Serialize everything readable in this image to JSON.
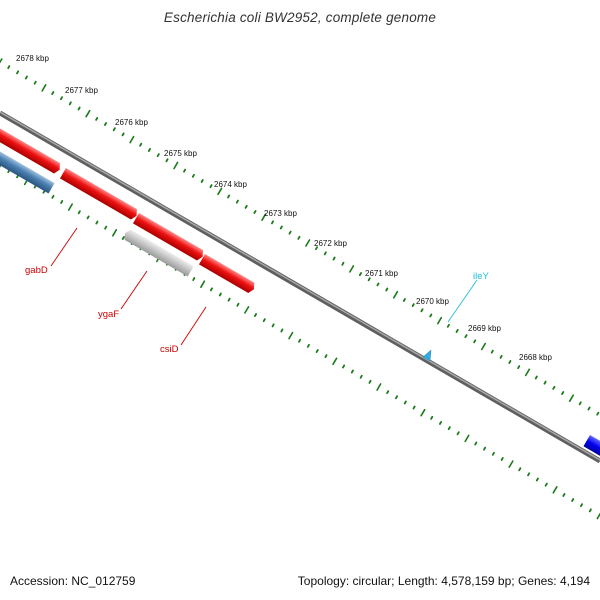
{
  "header": {
    "title": "Escherichia coli BW2952, complete genome"
  },
  "footer": {
    "accession": "Accession: NC_012759",
    "summary": "Topology: circular; Length: 4,578,159 bp; Genes: 4,194"
  },
  "scale": {
    "ticks": [
      "2678 kbp",
      "2677 kbp",
      "2676 kbp",
      "2675 kbp",
      "2674 kbp",
      "2673 kbp",
      "2672 kbp",
      "2671 kbp",
      "2670 kbp",
      "2669 kbp",
      "2668 kbp"
    ]
  },
  "genes": [
    {
      "name": "gabD",
      "color": "#cc0000"
    },
    {
      "name": "ygaF",
      "color": "#cc0000"
    },
    {
      "name": "csiD",
      "color": "#cc0000"
    },
    {
      "name": "ileY",
      "color": "#22bbdd"
    }
  ],
  "colors": {
    "backbone": "#777777",
    "cds_forward": "#ee1111",
    "cds_reverse": "#4a7fb0",
    "pseudo": "#bbbbbb",
    "trna": "#33aadd",
    "other": "#0000ee",
    "ticks": "#1a7a1a"
  }
}
